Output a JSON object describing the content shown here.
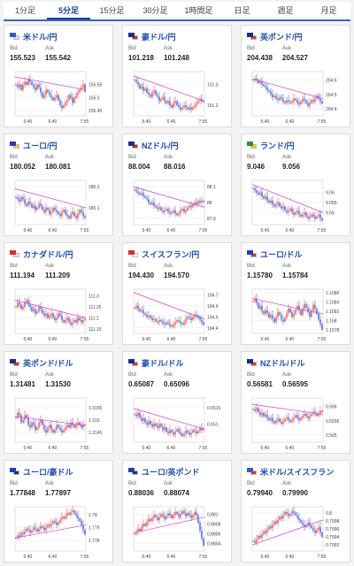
{
  "tabs": [
    {
      "label": "1分足",
      "active": false
    },
    {
      "label": "5分足",
      "active": true
    },
    {
      "label": "15分足",
      "active": false
    },
    {
      "label": "30分足",
      "active": false
    },
    {
      "label": "1時間足",
      "active": false
    },
    {
      "label": "日足",
      "active": false
    },
    {
      "label": "週足",
      "active": false
    },
    {
      "label": "月足",
      "active": false
    }
  ],
  "bid_label": "Bid",
  "ask_label": "Ask",
  "colors": {
    "up": "#e53030",
    "down": "#2845c8",
    "ma": "#cc44cc",
    "grid": "#eaeaea",
    "title": "#1e4fa6"
  },
  "pairs": [
    {
      "name": "米ドル/円",
      "bid": "155.523",
      "ask": "155.542",
      "flags": [
        "#3b5bb5",
        "#d8d8ee"
      ],
      "x_ticks": [
        "5:40",
        "6:40",
        "7:55"
      ],
      "y_ticks": [
        "155.55",
        "155.5",
        "155.45"
      ],
      "ylim": [
        155.43,
        155.6
      ],
      "closes": [
        155.55,
        155.54,
        155.55,
        155.53,
        155.55,
        155.56,
        155.55,
        155.57,
        155.56,
        155.55,
        155.54,
        155.53,
        155.55,
        155.54,
        155.52,
        155.5,
        155.51,
        155.53,
        155.52,
        155.51,
        155.5,
        155.49,
        155.5,
        155.51,
        155.49,
        155.47,
        155.46,
        155.47,
        155.48,
        155.49,
        155.51,
        155.5,
        155.48,
        155.5,
        155.51,
        155.52,
        155.53,
        155.54,
        155.55,
        155.523
      ],
      "ma": [
        155.58,
        155.53
      ]
    },
    {
      "name": "豪ドル/円",
      "bid": "101.218",
      "ask": "101.248",
      "flags": [
        "#1a2e85",
        "#c92828"
      ],
      "x_ticks": [
        "5:40",
        "6:40",
        "7:55"
      ],
      "y_ticks": [
        "101.3",
        "101.2"
      ],
      "ylim": [
        101.15,
        101.36
      ],
      "closes": [
        101.32,
        101.31,
        101.3,
        101.28,
        101.29,
        101.27,
        101.28,
        101.26,
        101.25,
        101.24,
        101.26,
        101.27,
        101.25,
        101.24,
        101.22,
        101.23,
        101.24,
        101.22,
        101.21,
        101.22,
        101.2,
        101.19,
        101.21,
        101.22,
        101.2,
        101.19,
        101.18,
        101.19,
        101.2,
        101.19,
        101.18,
        101.19,
        101.18,
        101.19,
        101.2,
        101.21,
        101.22,
        101.23,
        101.22,
        101.218
      ],
      "ma": [
        101.34,
        101.22
      ]
    },
    {
      "name": "英ポンド/円",
      "bid": "204.438",
      "ask": "204.527",
      "flags": [
        "#1c2e7a",
        "#d83a3a"
      ],
      "x_ticks": [
        "5:40",
        "6:40",
        "7:55"
      ],
      "y_ticks": [
        "204.6",
        "204.5",
        "204.4"
      ],
      "ylim": [
        204.35,
        204.66
      ],
      "closes": [
        204.6,
        204.61,
        204.6,
        204.58,
        204.59,
        204.57,
        204.56,
        204.55,
        204.53,
        204.52,
        204.5,
        204.48,
        204.49,
        204.47,
        204.46,
        204.48,
        204.47,
        204.45,
        204.44,
        204.46,
        204.45,
        204.44,
        204.45,
        204.47,
        204.46,
        204.44,
        204.43,
        204.45,
        204.47,
        204.46,
        204.44,
        204.42,
        204.44,
        204.46,
        204.45,
        204.47,
        204.49,
        204.47,
        204.45,
        204.438
      ],
      "ma": [
        204.61,
        204.47
      ]
    },
    {
      "name": "ユーロ/円",
      "bid": "180.052",
      "ask": "180.081",
      "flags": [
        "#2a3fa8",
        "#f0d23a"
      ],
      "x_ticks": [
        "5:40",
        "6:40",
        "7:55"
      ],
      "y_ticks": [
        "180.2",
        "180.1"
      ],
      "ylim": [
        180.02,
        180.23
      ],
      "closes": [
        180.15,
        180.14,
        180.13,
        180.15,
        180.14,
        180.12,
        180.11,
        180.13,
        180.12,
        180.1,
        180.11,
        180.09,
        180.1,
        180.12,
        180.11,
        180.09,
        180.08,
        180.1,
        180.09,
        180.07,
        180.08,
        180.1,
        180.09,
        180.08,
        180.07,
        180.06,
        180.08,
        180.09,
        180.07,
        180.06,
        180.05,
        180.07,
        180.08,
        180.06,
        180.05,
        180.07,
        180.09,
        180.08,
        180.06,
        180.052
      ],
      "ma": [
        180.19,
        180.1
      ]
    },
    {
      "name": "NZドル/円",
      "bid": "88.004",
      "ask": "88.016",
      "flags": [
        "#1a2e85",
        "#c92828"
      ],
      "x_ticks": [
        "5:40",
        "6:40",
        "7:55"
      ],
      "y_ticks": [
        "88.1",
        "88",
        "87.9"
      ],
      "ylim": [
        87.86,
        88.14
      ],
      "closes": [
        88.08,
        88.07,
        88.06,
        88.05,
        88.06,
        88.04,
        88.03,
        88.02,
        88.0,
        87.99,
        88.0,
        87.98,
        87.97,
        87.96,
        87.97,
        87.95,
        87.94,
        87.95,
        87.96,
        87.94,
        87.93,
        87.94,
        87.95,
        87.93,
        87.92,
        87.93,
        87.95,
        87.96,
        87.94,
        87.95,
        87.97,
        87.98,
        87.97,
        87.99,
        88.0,
        87.99,
        88.01,
        88.0,
        88.01,
        88.004
      ],
      "ma": [
        88.1,
        87.97
      ]
    },
    {
      "name": "ランド/円",
      "bid": "9.046",
      "ask": "9.056",
      "flags": [
        "#2d8a3a",
        "#f0c020"
      ],
      "x_ticks": [
        "5:40",
        "6:40",
        "7:55"
      ],
      "y_ticks": [
        "9.06",
        "9.055",
        "9.05"
      ],
      "ylim": [
        9.044,
        9.066
      ],
      "closes": [
        9.062,
        9.061,
        9.06,
        9.059,
        9.06,
        9.058,
        9.057,
        9.058,
        9.056,
        9.055,
        9.056,
        9.054,
        9.053,
        9.054,
        9.055,
        9.053,
        9.052,
        9.053,
        9.051,
        9.05,
        9.051,
        9.052,
        9.05,
        9.049,
        9.05,
        9.051,
        9.049,
        9.048,
        9.049,
        9.05,
        9.048,
        9.047,
        9.048,
        9.049,
        9.048,
        9.047,
        9.048,
        9.049,
        9.047,
        9.046
      ],
      "ma": [
        9.064,
        9.05
      ]
    },
    {
      "name": "カナダドル/円",
      "bid": "111.194",
      "ask": "111.209",
      "flags": [
        "#d83030",
        "#f2dada"
      ],
      "x_ticks": [
        "5:40",
        "6:40",
        "7:55"
      ],
      "y_ticks": [
        "111.3",
        "111.25",
        "111.2",
        "111.15"
      ],
      "ylim": [
        111.13,
        111.33
      ],
      "closes": [
        111.25,
        111.27,
        111.26,
        111.24,
        111.25,
        111.27,
        111.28,
        111.26,
        111.25,
        111.23,
        111.24,
        111.22,
        111.23,
        111.25,
        111.24,
        111.22,
        111.21,
        111.22,
        111.2,
        111.21,
        111.22,
        111.2,
        111.19,
        111.2,
        111.22,
        111.21,
        111.19,
        111.18,
        111.19,
        111.2,
        111.18,
        111.17,
        111.18,
        111.19,
        111.18,
        111.2,
        111.19,
        111.18,
        111.19,
        111.194
      ],
      "ma": [
        111.28,
        111.2
      ]
    },
    {
      "name": "スイスフラン/円",
      "bid": "194.430",
      "ask": "194.570",
      "flags": [
        "#d83030",
        "#ffffff"
      ],
      "x_ticks": [
        "5:40",
        "6:40",
        "7:55"
      ],
      "y_ticks": [
        "194.7",
        "194.6",
        "194.5",
        "194.4"
      ],
      "ylim": [
        194.35,
        194.75
      ],
      "closes": [
        194.58,
        194.6,
        194.57,
        194.55,
        194.56,
        194.53,
        194.52,
        194.5,
        194.51,
        194.49,
        194.47,
        194.48,
        194.46,
        194.45,
        194.47,
        194.46,
        194.44,
        194.43,
        194.45,
        194.44,
        194.42,
        194.41,
        194.43,
        194.45,
        194.47,
        194.46,
        194.44,
        194.43,
        194.45,
        194.48,
        194.5,
        194.49,
        194.47,
        194.5,
        194.52,
        194.51,
        194.49,
        194.47,
        194.45,
        194.43
      ],
      "ma": [
        194.72,
        194.48
      ]
    },
    {
      "name": "ユーロ/ドル",
      "bid": "1.15780",
      "ask": "1.15784",
      "flags": [
        "#2a3fa8",
        "#c83a3a"
      ],
      "x_ticks": [
        "5:40",
        "6:40",
        "7:55"
      ],
      "y_ticks": [
        "1.1586",
        "1.1584",
        "1.1582",
        "1.158",
        "1.1578"
      ],
      "ylim": [
        1.15772,
        1.15868
      ],
      "closes": [
        1.15842,
        1.15848,
        1.15838,
        1.15826,
        1.15832,
        1.1582,
        1.15814,
        1.15822,
        1.15816,
        1.15806,
        1.15812,
        1.15804,
        1.15796,
        1.15808,
        1.15818,
        1.15812,
        1.15802,
        1.15798,
        1.15806,
        1.15816,
        1.15826,
        1.15818,
        1.15808,
        1.15814,
        1.15824,
        1.15832,
        1.15822,
        1.15812,
        1.15826,
        1.15836,
        1.15828,
        1.15818,
        1.15808,
        1.15822,
        1.15834,
        1.15826,
        1.15814,
        1.15802,
        1.15792,
        1.1578
      ],
      "ma": [
        1.15848,
        1.15814
      ]
    },
    {
      "name": "英ポンド/ドル",
      "bid": "1.31481",
      "ask": "1.31530",
      "flags": [
        "#1c2e7a",
        "#c83a3a"
      ],
      "x_ticks": [
        "5:40",
        "6:40",
        "7:55"
      ],
      "y_ticks": [
        "1.3155",
        "1.315",
        "1.3145"
      ],
      "ylim": [
        1.3141,
        1.3159
      ],
      "closes": [
        1.3151,
        1.3153,
        1.3152,
        1.3149,
        1.315,
        1.3152,
        1.3151,
        1.3148,
        1.3147,
        1.3149,
        1.3148,
        1.3146,
        1.3147,
        1.3149,
        1.315,
        1.3148,
        1.3146,
        1.3145,
        1.3147,
        1.3148,
        1.3146,
        1.3145,
        1.3146,
        1.3148,
        1.3147,
        1.3146,
        1.3145,
        1.3146,
        1.3147,
        1.3148,
        1.3147,
        1.3149,
        1.3148,
        1.3147,
        1.3148,
        1.3149,
        1.3148,
        1.3147,
        1.3148,
        1.31481
      ],
      "ma": [
        1.31515,
        1.31478
      ]
    },
    {
      "name": "豪ドル/ドル",
      "bid": "0.65087",
      "ask": "0.65096",
      "flags": [
        "#1a2e85",
        "#c83a3a"
      ],
      "x_ticks": [
        "5:40",
        "6:40",
        "7:55"
      ],
      "y_ticks": [
        "0.6515",
        "0.651"
      ],
      "ylim": [
        0.65045,
        0.6518
      ],
      "closes": [
        0.6513,
        0.65125,
        0.65135,
        0.6512,
        0.6511,
        0.65118,
        0.65105,
        0.65098,
        0.6511,
        0.651,
        0.65092,
        0.65102,
        0.65095,
        0.65088,
        0.651,
        0.65092,
        0.65082,
        0.6509,
        0.65078,
        0.65072,
        0.65082,
        0.65075,
        0.65068,
        0.65078,
        0.65085,
        0.65076,
        0.6507,
        0.65064,
        0.6507,
        0.6508,
        0.65074,
        0.65068,
        0.65074,
        0.65082,
        0.65078,
        0.65072,
        0.6508,
        0.65088,
        0.65082,
        0.65087
      ],
      "ma": [
        0.65148,
        0.65085
      ]
    },
    {
      "name": "NZドル/ドル",
      "bid": "0.56581",
      "ask": "0.56595",
      "flags": [
        "#1a2e85",
        "#c83a3a"
      ],
      "x_ticks": [
        "5:40",
        "6:40",
        "7:55"
      ],
      "y_ticks": [
        "0.566",
        "0.5655",
        "0.565"
      ],
      "ylim": [
        0.56475,
        0.5663
      ],
      "closes": [
        0.5659,
        0.56585,
        0.56595,
        0.5658,
        0.5657,
        0.56578,
        0.56565,
        0.56572,
        0.5656,
        0.56552,
        0.5656,
        0.56548,
        0.56542,
        0.5655,
        0.56558,
        0.56546,
        0.5654,
        0.56548,
        0.56556,
        0.56562,
        0.56552,
        0.56546,
        0.56554,
        0.56562,
        0.5657,
        0.5656,
        0.56552,
        0.5656,
        0.56568,
        0.56574,
        0.56566,
        0.56558,
        0.56566,
        0.56574,
        0.56582,
        0.56576,
        0.56568,
        0.56576,
        0.56584,
        0.56581
      ],
      "ma": [
        0.56608,
        0.56572
      ]
    },
    {
      "name": "ユーロ/豪ドル",
      "bid": "1.77848",
      "ask": "1.77897",
      "flags": [
        "#2a3fa8",
        "#1a2e85"
      ],
      "x_ticks": [
        "5:40",
        "6:40",
        "7:55"
      ],
      "y_ticks": [
        "1.78",
        "1.779",
        "1.778"
      ],
      "ylim": [
        1.7772,
        1.7806
      ],
      "closes": [
        1.7782,
        1.7784,
        1.7783,
        1.7786,
        1.7785,
        1.7787,
        1.7789,
        1.7788,
        1.7786,
        1.7788,
        1.779,
        1.7789,
        1.7787,
        1.7789,
        1.7791,
        1.779,
        1.7788,
        1.779,
        1.7792,
        1.7791,
        1.7793,
        1.7795,
        1.7794,
        1.7792,
        1.7794,
        1.7796,
        1.7798,
        1.7797,
        1.7799,
        1.7801,
        1.78,
        1.7802,
        1.7803,
        1.7801,
        1.7799,
        1.7797,
        1.7795,
        1.7792,
        1.7788,
        1.77848
      ],
      "ma": [
        1.7782,
        1.7792
      ]
    },
    {
      "name": "ユーロ/英ポンド",
      "bid": "0.88036",
      "ask": "0.88074",
      "flags": [
        "#2a3fa8",
        "#1c2e7a"
      ],
      "x_ticks": [
        "5:40",
        "6:40",
        "7:55"
      ],
      "y_ticks": [
        "0.881",
        "0.8808",
        "0.8806",
        "0.8804"
      ],
      "ylim": [
        0.88025,
        0.88115
      ],
      "closes": [
        0.8806,
        0.88064,
        0.8807,
        0.88066,
        0.88074,
        0.8808,
        0.88076,
        0.88084,
        0.8809,
        0.88086,
        0.88092,
        0.88098,
        0.88094,
        0.88088,
        0.88094,
        0.881,
        0.88096,
        0.8809,
        0.88096,
        0.88102,
        0.88098,
        0.88092,
        0.88098,
        0.88104,
        0.881,
        0.88094,
        0.881,
        0.88106,
        0.88102,
        0.88096,
        0.88102,
        0.88098,
        0.88092,
        0.88098,
        0.88104,
        0.88098,
        0.88082,
        0.88066,
        0.8805,
        0.88036
      ],
      "ma": [
        0.88062,
        0.88094
      ]
    },
    {
      "name": "米ドル/スイスフラン",
      "bid": "0.79940",
      "ask": "0.79990",
      "flags": [
        "#3b5bb5",
        "#d83030"
      ],
      "x_ticks": [
        "5:40",
        "6:40",
        "7:55"
      ],
      "y_ticks": [
        "0.8",
        "0.7998",
        "0.7996",
        "0.7994",
        "0.7992"
      ],
      "ylim": [
        0.79905,
        0.80015
      ],
      "closes": [
        0.7993,
        0.79926,
        0.79934,
        0.79942,
        0.79938,
        0.79946,
        0.79954,
        0.7995,
        0.79958,
        0.79966,
        0.79962,
        0.7997,
        0.79978,
        0.79974,
        0.79982,
        0.7999,
        0.79986,
        0.79994,
        0.80002,
        0.79998,
        0.79992,
        0.79996,
        0.80004,
        0.8,
        0.79994,
        0.79988,
        0.79982,
        0.79976,
        0.7997,
        0.79964,
        0.7997,
        0.79976,
        0.79968,
        0.79962,
        0.79956,
        0.7995,
        0.79958,
        0.79964,
        0.7995,
        0.7994
      ],
      "ma": [
        0.7992,
        0.79982
      ]
    }
  ]
}
